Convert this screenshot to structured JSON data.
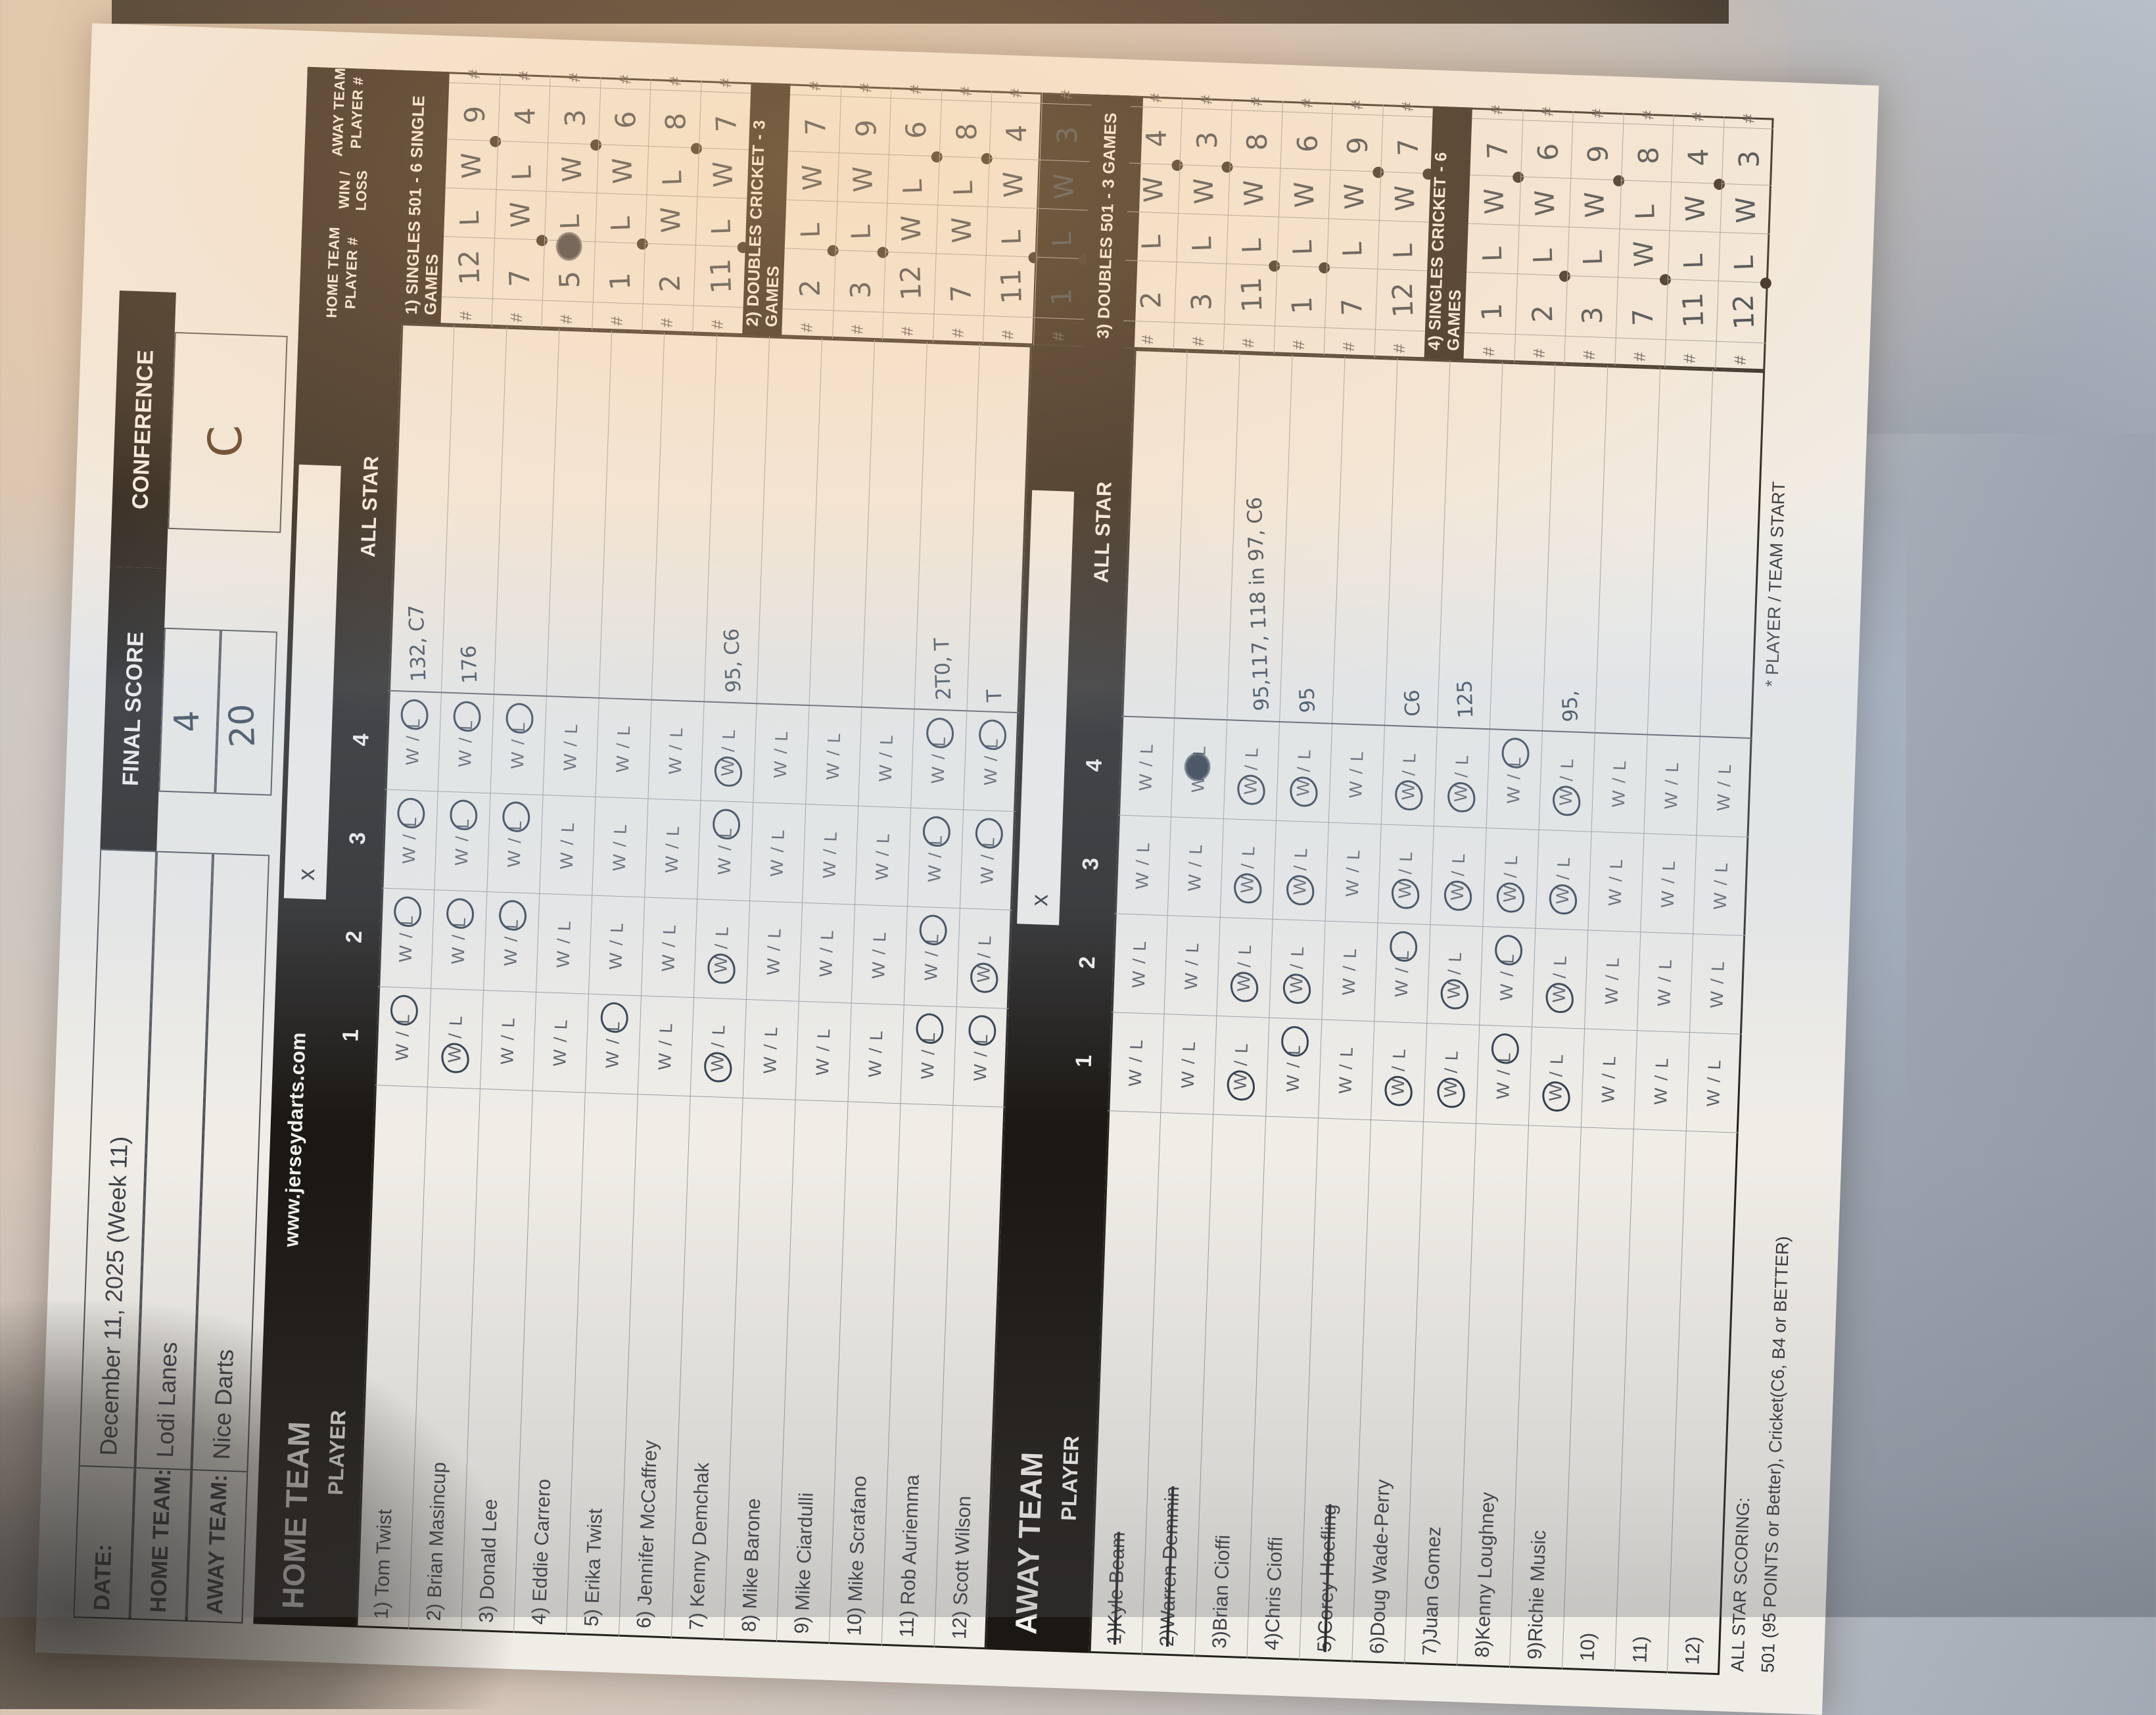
{
  "header": {
    "date_label": "DATE:",
    "date_value": "December 11, 2025 (Week 11)",
    "home_label": "HOME TEAM:",
    "home_value": "Lodi Lanes",
    "away_label": "AWAY TEAM:",
    "away_value": "Nice Darts",
    "final_score_label": "FINAL SCORE",
    "conference_label": "CONFERENCE",
    "final_score_home": "4",
    "final_score_away": "20",
    "conference_value": "C"
  },
  "site_url": "www.jerseydarts.com",
  "banner": {
    "home_title": "HOME TEAM",
    "away_title": "AWAY TEAM",
    "player_label": "PLAYER",
    "start_box_mark": "x",
    "game_numbers": [
      "1",
      "2",
      "3",
      "4"
    ],
    "all_star_label": "ALL STAR",
    "game_cell_text": "W / L",
    "hash": "#"
  },
  "right_header": {
    "home_line1": "HOME TEAM",
    "home_line2": "PLAYER #",
    "winloss": "WIN / LOSS",
    "away_line1": "AWAY TEAM",
    "away_line2": "PLAYER #"
  },
  "sections": [
    {
      "title": "1) SINGLES 501 - 6 SINGLE GAMES",
      "rows": [
        {
          "home": "12",
          "home_res": "L",
          "away_res": "W",
          "away": "9",
          "dot": "away"
        },
        {
          "home": "7",
          "home_res": "W",
          "away_res": "L",
          "away": "4",
          "dot": "home"
        },
        {
          "home": "5",
          "home_res": "L",
          "away_res": "W",
          "away": "3",
          "dot": "away",
          "scribble": true
        },
        {
          "home": "1",
          "home_res": "L",
          "away_res": "W",
          "away": "6",
          "dot": "home"
        },
        {
          "home": "2",
          "home_res": "W",
          "away_res": "L",
          "away": "8",
          "dot": "away"
        },
        {
          "home": "11",
          "home_res": "L",
          "away_res": "W",
          "away": "7",
          "dot": "home"
        }
      ]
    },
    {
      "title": "2) DOUBLES CRICKET - 3 GAMES",
      "rows": [
        {
          "home": "2",
          "home_res": "L",
          "away_res": "W",
          "away": "7",
          "dot": "home"
        },
        {
          "home": "3",
          "home_res": "L",
          "away_res": "W",
          "away": "9",
          "dot": "home"
        },
        {
          "home": "12",
          "home_res": "W",
          "away_res": "L",
          "away": "6",
          "dot": "away"
        },
        {
          "home": "7",
          "home_res": "W",
          "away_res": "L",
          "away": "8",
          "dot": "away"
        },
        {
          "home": "11",
          "home_res": "L",
          "away_res": "W",
          "away": "4",
          "dot": "home"
        },
        {
          "home": "1",
          "home_res": "L",
          "away_res": "W",
          "away": "3",
          "dot": "home"
        }
      ]
    },
    {
      "title": "3) DOUBLES 501 - 3 GAMES",
      "rows": [
        {
          "home": "2",
          "home_res": "L",
          "away_res": "W",
          "away": "4",
          "dot": "away"
        },
        {
          "home": "3",
          "home_res": "L",
          "away_res": "W",
          "away": "3",
          "dot": "away"
        },
        {
          "home": "11",
          "home_res": "L",
          "away_res": "W",
          "away": "8",
          "dot": "home"
        },
        {
          "home": "1",
          "home_res": "L",
          "away_res": "W",
          "away": "6",
          "dot": "home"
        },
        {
          "home": "7",
          "home_res": "L",
          "away_res": "W",
          "away": "9",
          "dot": "away"
        },
        {
          "home": "12",
          "home_res": "L",
          "away_res": "W",
          "away": "7",
          "dot": "away"
        }
      ]
    },
    {
      "title": "4) SINGLES CRICKET - 6 GAMES",
      "rows": [
        {
          "home": "1",
          "home_res": "L",
          "away_res": "W",
          "away": "7",
          "dot": "away"
        },
        {
          "home": "2",
          "home_res": "L",
          "away_res": "W",
          "away": "6",
          "dot": "home"
        },
        {
          "home": "3",
          "home_res": "L",
          "away_res": "W",
          "away": "9",
          "dot": "away"
        },
        {
          "home": "7",
          "home_res": "W",
          "away_res": "L",
          "away": "8",
          "dot": "home"
        },
        {
          "home": "11",
          "home_res": "L",
          "away_res": "W",
          "away": "4",
          "dot": "away"
        },
        {
          "home": "12",
          "home_res": "L",
          "away_res": "W",
          "away": "3",
          "dot": "home"
        }
      ]
    }
  ],
  "home_players": [
    {
      "name": "1) Tom Twist",
      "games": [
        "L",
        "L",
        "L",
        "L"
      ],
      "all_star": "132, C7"
    },
    {
      "name": "2) Brian Masincup",
      "games": [
        "W",
        "L",
        "L",
        "L"
      ],
      "all_star": "176"
    },
    {
      "name": "3) Donald Lee",
      "games": [
        null,
        "L",
        "L",
        "L"
      ],
      "all_star": ""
    },
    {
      "name": "4) Eddie Carrero",
      "games": [
        null,
        null,
        null,
        null
      ],
      "all_star": ""
    },
    {
      "name": "5) Erika Twist",
      "games": [
        "L",
        null,
        null,
        null
      ],
      "all_star": ""
    },
    {
      "name": "6) Jennifer McCaffrey",
      "games": [
        null,
        null,
        null,
        null
      ],
      "all_star": ""
    },
    {
      "name": "7) Kenny Demchak",
      "games": [
        "W",
        "W",
        "L",
        "W"
      ],
      "all_star": "95, C6"
    },
    {
      "name": "8) Mike Barone",
      "games": [
        null,
        null,
        null,
        null
      ],
      "all_star": ""
    },
    {
      "name": "9) Mike Ciardulli",
      "games": [
        null,
        null,
        null,
        null
      ],
      "all_star": ""
    },
    {
      "name": "10) Mike Scrafano",
      "games": [
        null,
        null,
        null,
        null
      ],
      "all_star": ""
    },
    {
      "name": "11) Rob Auriemma",
      "games": [
        "L",
        "L",
        "L",
        "L"
      ],
      "all_star": "2T0, T"
    },
    {
      "name": "12) Scott Wilson",
      "games": [
        "L",
        "W",
        "L",
        "L"
      ],
      "all_star": "T"
    }
  ],
  "away_players": [
    {
      "name": "1)Kyle Beam",
      "struck": true,
      "games": [
        null,
        null,
        null,
        null
      ],
      "all_star": ""
    },
    {
      "name": "2)Warren Demmin",
      "struck": true,
      "games": [
        null,
        null,
        null,
        "X"
      ],
      "all_star": ""
    },
    {
      "name": "3)Brian Cioffi",
      "struck": false,
      "games": [
        "W",
        "W",
        "W",
        "W"
      ],
      "all_star": "95,117, 118 in 97, C6"
    },
    {
      "name": "4)Chris Cioffi",
      "struck": false,
      "games": [
        "L",
        "W",
        "W",
        "W"
      ],
      "all_star": "95"
    },
    {
      "name": "5)Corey Hoefling",
      "struck": true,
      "games": [
        null,
        null,
        null,
        null
      ],
      "all_star": ""
    },
    {
      "name": "6)Doug Wade-Perry",
      "struck": false,
      "games": [
        "W",
        "L",
        "W",
        "W"
      ],
      "all_star": "C6"
    },
    {
      "name": "7)Juan Gomez",
      "struck": false,
      "games": [
        "W",
        "W",
        "W",
        "W"
      ],
      "all_star": "125"
    },
    {
      "name": "8)Kenny Loughney",
      "struck": false,
      "games": [
        "L",
        "L",
        "W",
        "L"
      ],
      "all_star": ""
    },
    {
      "name": "9)Richie Music",
      "struck": false,
      "games": [
        "W",
        "W",
        "W",
        "W"
      ],
      "all_star": "95,"
    },
    {
      "name": "10)",
      "struck": false,
      "games": [
        null,
        null,
        null,
        null
      ],
      "all_star": ""
    },
    {
      "name": "11)",
      "struck": false,
      "games": [
        null,
        null,
        null,
        null
      ],
      "all_star": ""
    },
    {
      "name": "12)",
      "struck": false,
      "games": [
        null,
        null,
        null,
        null
      ],
      "all_star": ""
    }
  ],
  "legend": {
    "line1": "ALL STAR SCORING:",
    "line2": "501 (95 POINTS or Better), Cricket(C6, B4 or BETTER)",
    "start_note": "* PLAYER / TEAM START"
  }
}
